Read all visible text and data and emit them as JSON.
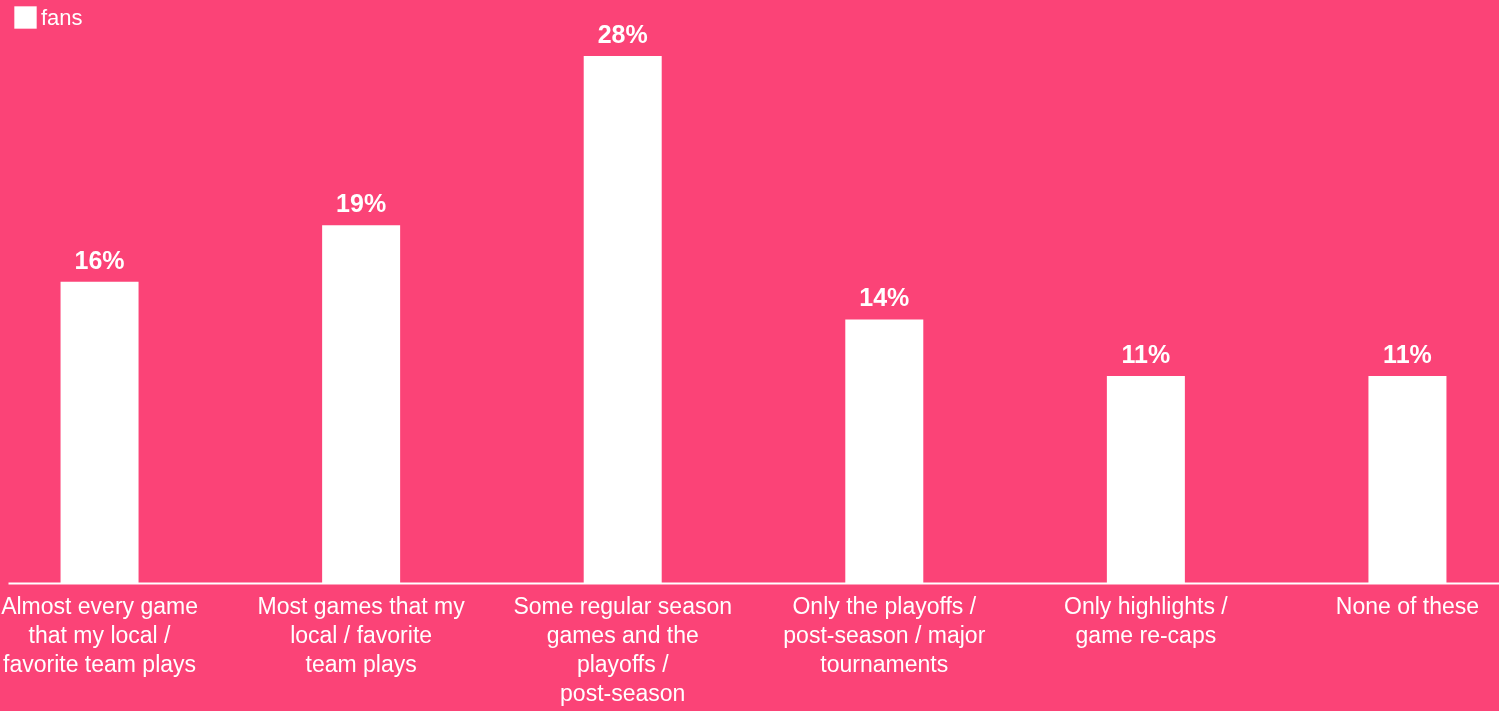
{
  "chart_data": {
    "type": "bar",
    "categories": [
      "Almost every game that my local / favorite team plays",
      "Most games that my local / favorite team plays",
      "Some regular season games and the playoffs / post-season",
      "Only the playoffs / post-season / major tournaments",
      "Only highlights / game re-caps",
      "None of these"
    ],
    "series": [
      {
        "name": "fans",
        "color": "#ffffff",
        "values": [
          16,
          19,
          28,
          14,
          11,
          11
        ],
        "value_labels": [
          "16%",
          "19%",
          "28%",
          "14%",
          "11%",
          "11%"
        ]
      }
    ],
    "legend": "top left",
    "grid": false
  }
}
